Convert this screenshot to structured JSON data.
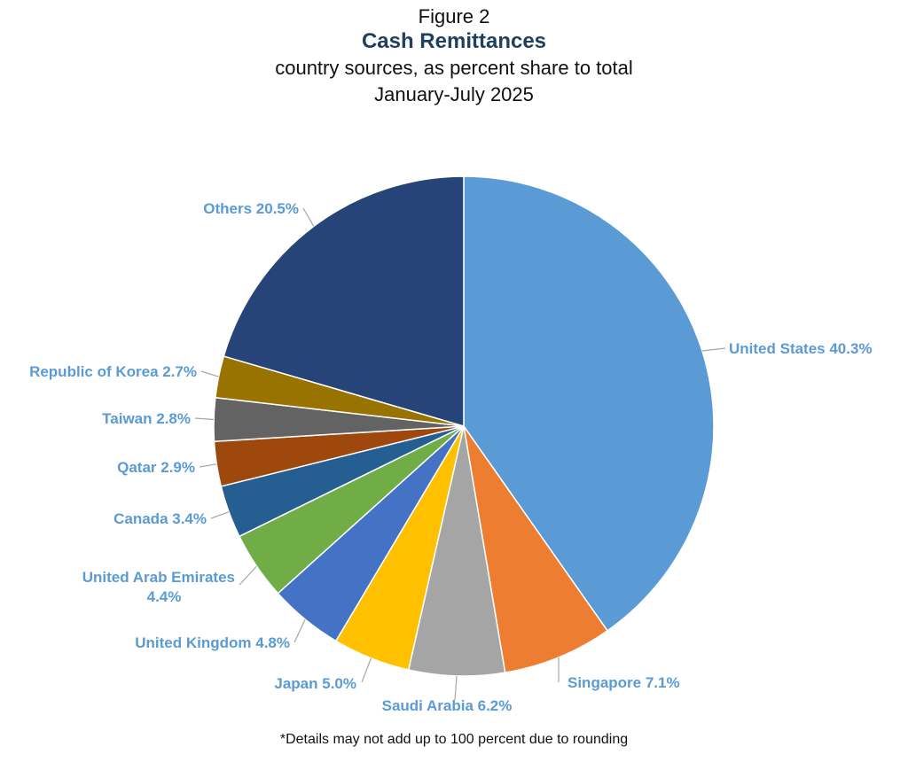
{
  "header": {
    "figure_label": "Figure 2",
    "title": "Cash Remittances",
    "subtitle": "country sources, as percent share to total",
    "period": "January-July 2025"
  },
  "footnote": "*Details may not add up to 100 percent due to rounding",
  "chart_data": {
    "type": "pie",
    "title": "Cash Remittances",
    "subtitle": "country sources, as percent share to total",
    "period": "January-July 2025",
    "unit": "%",
    "label_color": "#5b9bd5",
    "slices": [
      {
        "label": "United States 40.3%",
        "name": "United States",
        "value": 40.3,
        "color": "#5b9bd5"
      },
      {
        "label": "Singapore 7.1%",
        "name": "Singapore",
        "value": 7.1,
        "color": "#ed7d31"
      },
      {
        "label": "Saudi Arabia 6.2%",
        "name": "Saudi Arabia",
        "value": 6.2,
        "color": "#a5a5a5"
      },
      {
        "label": "Japan 5.0%",
        "name": "Japan",
        "value": 5.0,
        "color": "#ffc000"
      },
      {
        "label": "United Kingdom 4.8%",
        "name": "United Kingdom",
        "value": 4.8,
        "color": "#4472c4"
      },
      {
        "label": "United Arab Emirates 4.4%",
        "name": "United Arab Emirates",
        "value": 4.4,
        "color": "#70ad47",
        "label_lines": [
          "United Arab Emirates",
          "4.4%"
        ]
      },
      {
        "label": "Canada 3.4%",
        "name": "Canada",
        "value": 3.4,
        "color": "#255e91"
      },
      {
        "label": "Qatar 2.9%",
        "name": "Qatar",
        "value": 2.9,
        "color": "#9e480e"
      },
      {
        "label": "Taiwan 2.8%",
        "name": "Taiwan",
        "value": 2.8,
        "color": "#636363"
      },
      {
        "label": "Republic of Korea 2.7%",
        "name": "Republic of Korea",
        "value": 2.7,
        "color": "#997300"
      },
      {
        "label": "Others 20.5%",
        "name": "Others",
        "value": 20.5,
        "color": "#264478"
      }
    ]
  }
}
